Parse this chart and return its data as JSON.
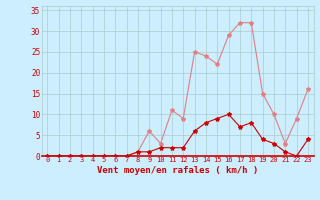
{
  "hours": [
    0,
    1,
    2,
    3,
    4,
    5,
    6,
    7,
    8,
    9,
    10,
    11,
    12,
    13,
    14,
    15,
    16,
    17,
    18,
    19,
    20,
    21,
    22,
    23
  ],
  "wind_avg": [
    0,
    0,
    0,
    0,
    0,
    0,
    0,
    0,
    1,
    1,
    2,
    2,
    2,
    6,
    8,
    9,
    10,
    7,
    8,
    4,
    3,
    1,
    0,
    4
  ],
  "wind_gust": [
    0,
    0,
    0,
    0,
    0,
    0,
    0,
    0,
    1,
    6,
    3,
    11,
    9,
    25,
    24,
    22,
    29,
    32,
    32,
    15,
    10,
    3,
    9,
    16
  ],
  "line_color_avg": "#cc0000",
  "line_color_gust": "#e08080",
  "bg_color": "#cceeff",
  "grid_color": "#aacccc",
  "tick_color": "#cc0000",
  "xlabel": "Vent moyen/en rafales ( km/h )",
  "ylim": [
    0,
    36
  ],
  "yticks": [
    0,
    5,
    10,
    15,
    20,
    25,
    30,
    35
  ],
  "xlabel_color": "#cc0000",
  "red_line_color": "#cc0000"
}
